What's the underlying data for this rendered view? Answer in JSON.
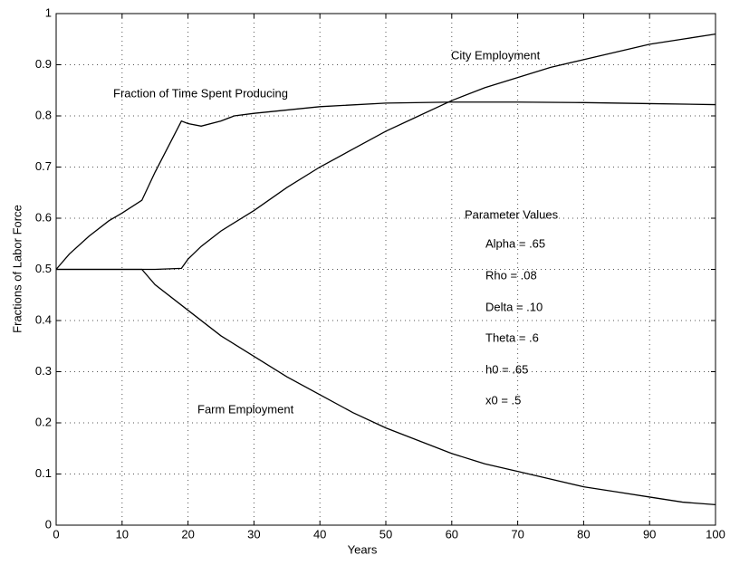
{
  "chart_data": {
    "type": "line",
    "xlabel": "Years",
    "ylabel": "Fractions of Labor Force",
    "xlim": [
      0,
      100
    ],
    "ylim": [
      0,
      1
    ],
    "xticks": [
      0,
      10,
      20,
      30,
      40,
      50,
      60,
      70,
      80,
      90,
      100
    ],
    "yticks": [
      0,
      0.1,
      0.2,
      0.3,
      0.4,
      0.5,
      0.6,
      0.7,
      0.8,
      0.9,
      1
    ],
    "grid": true,
    "series": [
      {
        "name": "City Employment",
        "color": "#000000",
        "x": [
          0,
          5,
          10,
          15,
          19,
          20,
          22,
          25,
          30,
          35,
          40,
          45,
          50,
          55,
          60,
          65,
          70,
          75,
          80,
          85,
          90,
          95,
          100
        ],
        "values": [
          0.5,
          0.5,
          0.5,
          0.5,
          0.502,
          0.52,
          0.545,
          0.575,
          0.615,
          0.66,
          0.7,
          0.735,
          0.77,
          0.8,
          0.83,
          0.855,
          0.875,
          0.895,
          0.91,
          0.925,
          0.94,
          0.95,
          0.96
        ]
      },
      {
        "name": "Farm Employment",
        "color": "#000000",
        "x": [
          0,
          5,
          10,
          13,
          15,
          20,
          25,
          30,
          35,
          40,
          45,
          50,
          55,
          60,
          65,
          70,
          75,
          80,
          85,
          90,
          95,
          100
        ],
        "values": [
          0.5,
          0.5,
          0.5,
          0.5,
          0.47,
          0.42,
          0.37,
          0.33,
          0.29,
          0.255,
          0.22,
          0.19,
          0.165,
          0.14,
          0.12,
          0.105,
          0.09,
          0.075,
          0.065,
          0.055,
          0.045,
          0.04
        ]
      },
      {
        "name": "Fraction of Time Spent Producing",
        "color": "#000000",
        "x": [
          0,
          2,
          5,
          8,
          10,
          13,
          15,
          17,
          19,
          20,
          22,
          25,
          27,
          30,
          40,
          50,
          60,
          70,
          80,
          90,
          100
        ],
        "values": [
          0.5,
          0.53,
          0.565,
          0.595,
          0.61,
          0.635,
          0.69,
          0.74,
          0.79,
          0.785,
          0.78,
          0.79,
          0.8,
          0.805,
          0.818,
          0.825,
          0.827,
          0.827,
          0.826,
          0.824,
          0.822
        ]
      }
    ],
    "annotations": [
      "City Employment",
      "Fraction of Time Spent Producing",
      "Farm Employment",
      "Parameter Values",
      "Alpha = .65",
      "Rho = .08",
      "Delta = .10",
      "Theta = .6",
      "h0 = .65",
      "x0 = .5"
    ]
  }
}
